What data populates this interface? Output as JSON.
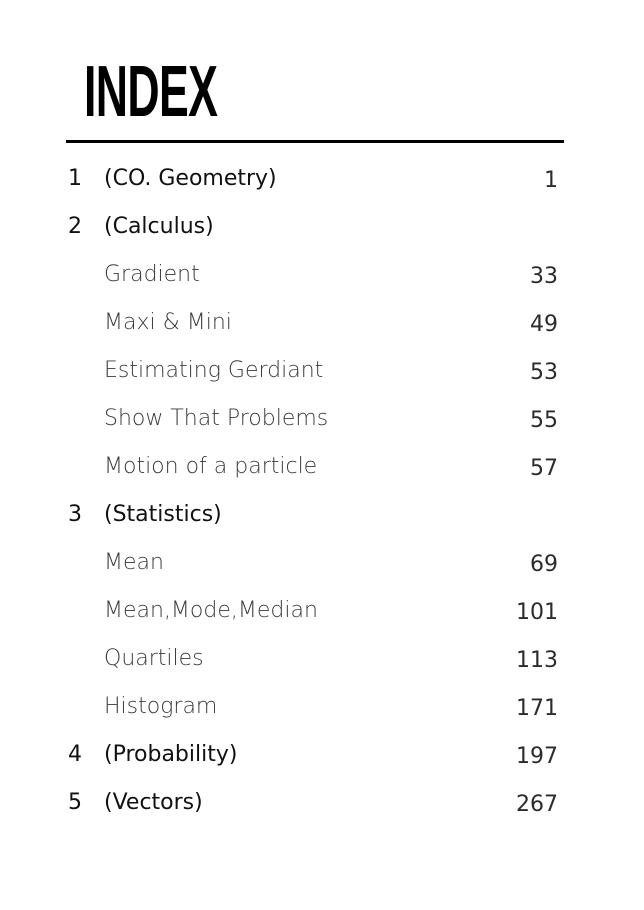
{
  "title": "INDEX",
  "entries": [
    {
      "number": "1",
      "label": "(CO. Geometry)",
      "page": "1",
      "kind": "section"
    },
    {
      "number": "2",
      "label": "(Calculus)",
      "page": "",
      "kind": "section"
    },
    {
      "number": "",
      "label": "Gradient",
      "page": "33",
      "kind": "sub"
    },
    {
      "number": "",
      "label": "Maxi & Mini",
      "page": "49",
      "kind": "sub"
    },
    {
      "number": "",
      "label": "Estimating Gerdiant",
      "page": "53",
      "kind": "sub"
    },
    {
      "number": "",
      "label": "Show That Problems",
      "page": "55",
      "kind": "sub"
    },
    {
      "number": "",
      "label": "Motion of a particle",
      "page": "57",
      "kind": "sub"
    },
    {
      "number": "3",
      "label": "(Statistics)",
      "page": "",
      "kind": "section"
    },
    {
      "number": "",
      "label": "Mean",
      "page": "69",
      "kind": "sub"
    },
    {
      "number": "",
      "label": "Mean,Mode,Median",
      "page": "101",
      "kind": "sub"
    },
    {
      "number": "",
      "label": "Quartiles",
      "page": "113",
      "kind": "sub"
    },
    {
      "number": "",
      "label": "Histogram",
      "page": "171",
      "kind": "sub"
    },
    {
      "number": "4",
      "label": "(Probability)",
      "page": "197",
      "kind": "section"
    },
    {
      "number": "5",
      "label": "(Vectors)",
      "page": "267",
      "kind": "section"
    }
  ]
}
